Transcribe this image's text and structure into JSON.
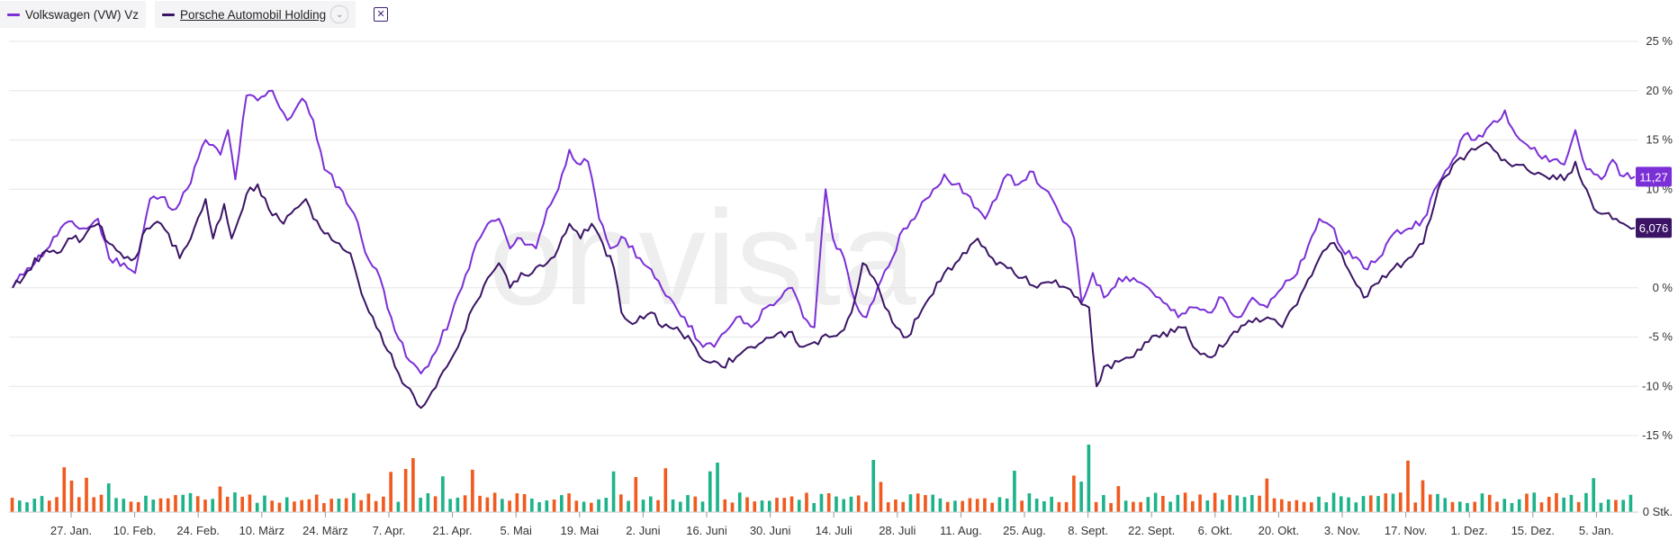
{
  "legend": {
    "vw_label": "Volkswagen (VW) Vz",
    "porsche_label": "Porsche Automobil Holding",
    "dropdown_icon": "chevron-down-icon",
    "remove_icon": "close-icon"
  },
  "watermark": "onvista",
  "colors": {
    "vw": "#7b2fd6",
    "porsche": "#3b1466",
    "up": "#1db38a",
    "down": "#f05a1e",
    "grid": "#e6e6e6"
  },
  "chart_data": {
    "type": "line",
    "y_unit": "%",
    "ylim": [
      -15,
      25
    ],
    "y_ticks": [
      25,
      20,
      15,
      10,
      0,
      -5,
      -10,
      -15
    ],
    "y_tick_labels": [
      "25 %",
      "20 %",
      "15 %",
      "10 %",
      "0 %",
      "-5 %",
      "-10 %",
      "-15 %"
    ],
    "x_tick_labels": [
      "27. Jan.",
      "10. Feb.",
      "24. Feb.",
      "10. März",
      "24. März",
      "7. Apr.",
      "21. Apr.",
      "5. Mai",
      "19. Mai",
      "2. Juni",
      "16. Juni",
      "30. Juni",
      "14. Juli",
      "28. Juli",
      "11. Aug.",
      "25. Aug.",
      "8. Sept.",
      "22. Sept.",
      "6. Okt.",
      "20. Okt.",
      "3. Nov.",
      "17. Nov.",
      "1. Dez.",
      "15. Dez.",
      "5. Jan."
    ],
    "series": [
      {
        "name": "Volkswagen (VW) Vz",
        "last_value_label": "11,27",
        "keypoints": [
          [
            0,
            0
          ],
          [
            4,
            2
          ],
          [
            9,
            3.8
          ],
          [
            14,
            6.5
          ],
          [
            20,
            6
          ],
          [
            23,
            7
          ],
          [
            26,
            3
          ],
          [
            30,
            2.5
          ],
          [
            33,
            1.5
          ],
          [
            37,
            9
          ],
          [
            40,
            9.2
          ],
          [
            44,
            8
          ],
          [
            47,
            10
          ],
          [
            52,
            15
          ],
          [
            56,
            13.5
          ],
          [
            58,
            16
          ],
          [
            60,
            11
          ],
          [
            63,
            19.5
          ],
          [
            66,
            19
          ],
          [
            70,
            20
          ],
          [
            74,
            17
          ],
          [
            78,
            19.2
          ],
          [
            81,
            17
          ],
          [
            84,
            12
          ],
          [
            88,
            10.2
          ],
          [
            92,
            7.5
          ],
          [
            96,
            2.8
          ],
          [
            99,
            1
          ],
          [
            102,
            -3
          ],
          [
            106,
            -7
          ],
          [
            110,
            -8.7
          ],
          [
            114,
            -6.5
          ],
          [
            118,
            -3
          ],
          [
            121,
            0
          ],
          [
            124,
            3.5
          ],
          [
            128,
            6.5
          ],
          [
            131,
            7
          ],
          [
            134,
            4
          ],
          [
            137,
            5
          ],
          [
            141,
            4
          ],
          [
            144,
            8
          ],
          [
            147,
            10
          ],
          [
            150,
            14
          ],
          [
            153,
            12.5
          ],
          [
            155,
            12.8
          ],
          [
            158,
            7
          ],
          [
            161,
            4
          ],
          [
            165,
            5
          ],
          [
            169,
            3
          ],
          [
            173,
            1
          ],
          [
            177,
            -1
          ],
          [
            181,
            -3
          ],
          [
            185,
            -5.5
          ],
          [
            189,
            -6
          ],
          [
            192,
            -4.5
          ],
          [
            195,
            -3
          ],
          [
            199,
            -4
          ],
          [
            203,
            -2
          ],
          [
            207,
            -1
          ],
          [
            210,
            0
          ],
          [
            213,
            -3
          ],
          [
            216,
            -4
          ],
          [
            219,
            10
          ],
          [
            221,
            5
          ],
          [
            224,
            3
          ],
          [
            227,
            -1.5
          ],
          [
            230,
            -3
          ],
          [
            233,
            0
          ],
          [
            237,
            3
          ],
          [
            240,
            6
          ],
          [
            243,
            7
          ],
          [
            246,
            9
          ],
          [
            248,
            10
          ],
          [
            251,
            11.5
          ],
          [
            254,
            10.5
          ],
          [
            257,
            9.5
          ],
          [
            260,
            8
          ],
          [
            262,
            7
          ],
          [
            265,
            9
          ],
          [
            268,
            11.5
          ],
          [
            271,
            10.5
          ],
          [
            274,
            11.8
          ],
          [
            278,
            10
          ],
          [
            282,
            7.5
          ],
          [
            286,
            5
          ],
          [
            288,
            -1.5
          ],
          [
            291,
            1.5
          ],
          [
            294,
            -1
          ],
          [
            298,
            1
          ],
          [
            302,
            1
          ],
          [
            306,
            0
          ],
          [
            310,
            -1.5
          ],
          [
            314,
            -3
          ],
          [
            318,
            -2
          ],
          [
            322,
            -2.5
          ],
          [
            326,
            -1
          ],
          [
            330,
            -3
          ],
          [
            334,
            -1
          ],
          [
            338,
            -2
          ],
          [
            342,
            0
          ],
          [
            345,
            1
          ],
          [
            348,
            3
          ],
          [
            352,
            7
          ],
          [
            356,
            6
          ],
          [
            358,
            4
          ],
          [
            361,
            3
          ],
          [
            364,
            2
          ],
          [
            368,
            3
          ],
          [
            372,
            5.5
          ],
          [
            376,
            6
          ],
          [
            380,
            7
          ],
          [
            384,
            10.5
          ],
          [
            388,
            13
          ],
          [
            391,
            15.5
          ],
          [
            394,
            15
          ],
          [
            398,
            16.5
          ],
          [
            402,
            18
          ],
          [
            405,
            15.5
          ],
          [
            408,
            14.5
          ],
          [
            411,
            13.5
          ],
          [
            415,
            13
          ],
          [
            418,
            12.5
          ],
          [
            421,
            16
          ],
          [
            424,
            12
          ],
          [
            428,
            11
          ],
          [
            431,
            13
          ],
          [
            434,
            11.3
          ],
          [
            437,
            11.27
          ]
        ]
      },
      {
        "name": "Porsche Automobil Holding",
        "last_value_label": "6,076",
        "keypoints": [
          [
            0,
            0
          ],
          [
            4,
            1.7
          ],
          [
            8,
            3.5
          ],
          [
            12,
            3.5
          ],
          [
            16,
            5
          ],
          [
            19,
            5
          ],
          [
            23,
            6.5
          ],
          [
            26,
            4.5
          ],
          [
            30,
            3
          ],
          [
            33,
            3
          ],
          [
            36,
            6
          ],
          [
            40,
            6.5
          ],
          [
            42,
            5.5
          ],
          [
            45,
            3
          ],
          [
            48,
            5
          ],
          [
            52,
            9
          ],
          [
            54,
            5
          ],
          [
            57,
            8.5
          ],
          [
            59,
            5
          ],
          [
            63,
            9.5
          ],
          [
            66,
            10.5
          ],
          [
            69,
            8
          ],
          [
            73,
            6.5
          ],
          [
            76,
            8
          ],
          [
            79,
            9
          ],
          [
            81,
            7
          ],
          [
            84,
            5.5
          ],
          [
            88,
            4.5
          ],
          [
            91,
            3.5
          ],
          [
            95,
            -1.5
          ],
          [
            99,
            -4.5
          ],
          [
            103,
            -8
          ],
          [
            106,
            -10
          ],
          [
            110,
            -12.2
          ],
          [
            113,
            -10.5
          ],
          [
            117,
            -8
          ],
          [
            121,
            -5
          ],
          [
            124,
            -2
          ],
          [
            128,
            1
          ],
          [
            131,
            2.5
          ],
          [
            134,
            0
          ],
          [
            137,
            1.5
          ],
          [
            140,
            1.5
          ],
          [
            144,
            2.5
          ],
          [
            147,
            4
          ],
          [
            150,
            6.5
          ],
          [
            153,
            5
          ],
          [
            156,
            6.5
          ],
          [
            159,
            4.5
          ],
          [
            162,
            2
          ],
          [
            164,
            -2.5
          ],
          [
            168,
            -3.5
          ],
          [
            172,
            -2.5
          ],
          [
            175,
            -4
          ],
          [
            179,
            -4
          ],
          [
            183,
            -5.5
          ],
          [
            187,
            -7.5
          ],
          [
            191,
            -8
          ],
          [
            195,
            -7
          ],
          [
            199,
            -6
          ],
          [
            202,
            -5.5
          ],
          [
            205,
            -5
          ],
          [
            209,
            -4.5
          ],
          [
            213,
            -6
          ],
          [
            216,
            -5.5
          ],
          [
            220,
            -5
          ],
          [
            223,
            -4.5
          ],
          [
            226,
            -2.5
          ],
          [
            229,
            2.5
          ],
          [
            232,
            1
          ],
          [
            235,
            -2
          ],
          [
            238,
            -4
          ],
          [
            241,
            -5
          ],
          [
            244,
            -3
          ],
          [
            247,
            -1
          ],
          [
            251,
            1.5
          ],
          [
            254,
            2.5
          ],
          [
            257,
            3.5
          ],
          [
            260,
            5
          ],
          [
            264,
            3
          ],
          [
            268,
            2
          ],
          [
            272,
            1
          ],
          [
            276,
            0
          ],
          [
            280,
            0.5
          ],
          [
            284,
            0
          ],
          [
            287,
            -1
          ],
          [
            290,
            -2
          ],
          [
            292,
            -10
          ],
          [
            294,
            -8
          ],
          [
            298,
            -7.5
          ],
          [
            302,
            -7
          ],
          [
            306,
            -5.5
          ],
          [
            310,
            -4.5
          ],
          [
            313,
            -4.5
          ],
          [
            316,
            -4
          ],
          [
            318,
            -6
          ],
          [
            322,
            -7
          ],
          [
            326,
            -6
          ],
          [
            330,
            -4.5
          ],
          [
            334,
            -3.5
          ],
          [
            338,
            -3
          ],
          [
            342,
            -4
          ],
          [
            345,
            -2
          ],
          [
            348,
            0
          ],
          [
            352,
            3
          ],
          [
            355,
            4.5
          ],
          [
            358,
            3.5
          ],
          [
            361,
            1
          ],
          [
            364,
            -1
          ],
          [
            368,
            0.5
          ],
          [
            372,
            2
          ],
          [
            376,
            3
          ],
          [
            380,
            4.5
          ],
          [
            384,
            10
          ],
          [
            388,
            12.5
          ],
          [
            391,
            13
          ],
          [
            394,
            14
          ],
          [
            398,
            14.5
          ],
          [
            402,
            13
          ],
          [
            405,
            12.5
          ],
          [
            408,
            12
          ],
          [
            412,
            11.5
          ],
          [
            416,
            11
          ],
          [
            419,
            11.5
          ],
          [
            421,
            12.8
          ],
          [
            424,
            10
          ],
          [
            426,
            8
          ],
          [
            428,
            7.5
          ],
          [
            432,
            7
          ],
          [
            434,
            6.5
          ],
          [
            437,
            6.076
          ]
        ]
      }
    ],
    "volume": {
      "unit_label": "0 Stk.",
      "seed": 7
    }
  }
}
